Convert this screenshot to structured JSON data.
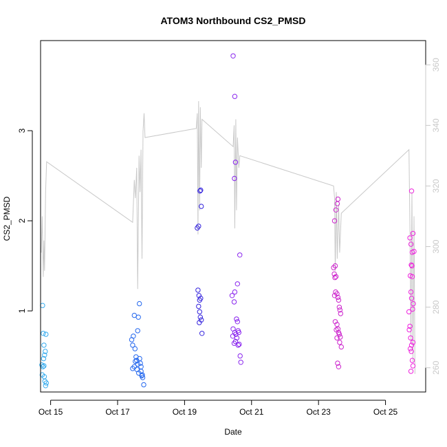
{
  "chart_data": {
    "type": "scatter",
    "title": "ATOM3 Northbound CS2_PMSD",
    "xlabel": "Date",
    "ylabel": "CS2_PMSD",
    "x_unit": "day of October",
    "xlim": [
      14.7,
      26.2
    ],
    "ylim": [
      0.1,
      4.0
    ],
    "xticks": [
      {
        "value": 15,
        "label": "Oct 15"
      },
      {
        "value": 17,
        "label": "Oct 17"
      },
      {
        "value": 19,
        "label": "Oct 19"
      },
      {
        "value": 21,
        "label": "Oct 21"
      },
      {
        "value": 23,
        "label": "Oct 23"
      },
      {
        "value": 25,
        "label": "Oct 25"
      }
    ],
    "yticks": [
      1,
      2,
      3
    ],
    "y2lim": [
      252,
      368
    ],
    "y2ticks": [
      260,
      280,
      300,
      320,
      340,
      360
    ],
    "grid": false,
    "legend": "none",
    "secondary_series": {
      "color": "#c8c8c8",
      "points": [
        [
          14.72,
          298
        ],
        [
          14.75,
          310
        ],
        [
          14.78,
          290
        ],
        [
          14.8,
          302
        ],
        [
          14.82,
          292
        ],
        [
          14.85,
          318
        ],
        [
          14.88,
          328
        ],
        [
          17.45,
          308
        ],
        [
          17.5,
          322
        ],
        [
          17.53,
          316
        ],
        [
          17.57,
          326
        ],
        [
          17.6,
          286
        ],
        [
          17.64,
          330
        ],
        [
          17.67,
          318
        ],
        [
          17.7,
          332
        ],
        [
          17.73,
          296
        ],
        [
          17.76,
          338
        ],
        [
          17.79,
          344
        ],
        [
          17.82,
          336
        ],
        [
          19.35,
          339
        ],
        [
          19.38,
          344
        ],
        [
          19.4,
          304
        ],
        [
          19.42,
          348
        ],
        [
          19.45,
          312
        ],
        [
          19.47,
          346
        ],
        [
          19.5,
          326
        ],
        [
          19.52,
          342
        ],
        [
          20.45,
          333
        ],
        [
          20.48,
          340
        ],
        [
          20.5,
          306
        ],
        [
          20.53,
          342
        ],
        [
          20.55,
          312
        ],
        [
          20.58,
          336
        ],
        [
          20.62,
          326
        ],
        [
          20.65,
          330
        ],
        [
          23.45,
          320
        ],
        [
          23.48,
          316
        ],
        [
          23.5,
          292
        ],
        [
          23.53,
          318
        ],
        [
          23.56,
          296
        ],
        [
          23.6,
          314
        ],
        [
          23.63,
          298
        ],
        [
          23.68,
          311
        ],
        [
          25.7,
          332
        ],
        [
          25.73,
          306
        ],
        [
          25.76,
          268
        ],
        [
          25.79,
          318
        ],
        [
          25.82,
          262
        ],
        [
          25.85,
          310
        ],
        [
          25.88,
          258
        ]
      ]
    },
    "series": [
      {
        "color": "#33aaee",
        "points": [
          [
            14.76,
            1.06
          ],
          [
            14.78,
            0.75
          ],
          [
            14.8,
            0.62
          ],
          [
            14.82,
            0.51
          ],
          [
            14.84,
            0.55
          ],
          [
            14.86,
            0.74
          ],
          [
            14.74,
            0.4
          ],
          [
            14.77,
            0.38
          ],
          [
            14.79,
            0.47
          ],
          [
            14.81,
            0.27
          ],
          [
            14.83,
            0.22
          ],
          [
            14.85,
            0.17
          ],
          [
            14.87,
            0.2
          ],
          [
            14.75,
            0.29
          ],
          [
            14.8,
            0.39
          ]
        ]
      },
      {
        "color": "#2266ee",
        "points": [
          [
            17.42,
            0.68
          ],
          [
            17.45,
            0.62
          ],
          [
            17.47,
            0.72
          ],
          [
            17.5,
            0.95
          ],
          [
            17.52,
            0.58
          ],
          [
            17.55,
            0.49
          ],
          [
            17.57,
            0.45
          ],
          [
            17.6,
            0.78
          ],
          [
            17.62,
            0.93
          ],
          [
            17.65,
            1.08
          ],
          [
            17.68,
            0.42
          ],
          [
            17.7,
            0.38
          ],
          [
            17.72,
            0.28
          ],
          [
            17.75,
            0.26
          ],
          [
            17.78,
            0.18
          ],
          [
            17.5,
            0.38
          ],
          [
            17.53,
            0.44
          ],
          [
            17.58,
            0.35
          ],
          [
            17.63,
            0.31
          ],
          [
            17.66,
            0.47
          ],
          [
            17.7,
            0.33
          ],
          [
            17.74,
            0.29
          ],
          [
            17.45,
            0.36
          ],
          [
            17.6,
            0.41
          ]
        ]
      },
      {
        "color": "#3322dd",
        "points": [
          [
            19.38,
            1.92
          ],
          [
            19.42,
            1.94
          ],
          [
            19.46,
            2.33
          ],
          [
            19.48,
            2.34
          ],
          [
            19.5,
            2.16
          ],
          [
            19.4,
            1.23
          ],
          [
            19.43,
            1.17
          ],
          [
            19.45,
            1.12
          ],
          [
            19.48,
            1.14
          ],
          [
            19.42,
            1.05
          ],
          [
            19.45,
            0.99
          ],
          [
            19.47,
            0.93
          ],
          [
            19.5,
            0.9
          ],
          [
            19.44,
            0.87
          ],
          [
            19.52,
            0.75
          ]
        ]
      },
      {
        "color": "#8822ee",
        "points": [
          [
            20.45,
            3.83
          ],
          [
            20.5,
            3.38
          ],
          [
            20.52,
            2.65
          ],
          [
            20.49,
            2.47
          ],
          [
            20.65,
            1.62
          ],
          [
            20.58,
            1.3
          ],
          [
            20.5,
            1.21
          ],
          [
            20.42,
            1.17
          ],
          [
            20.48,
            1.1
          ],
          [
            20.55,
            0.91
          ],
          [
            20.58,
            0.88
          ],
          [
            20.45,
            0.8
          ],
          [
            20.5,
            0.76
          ],
          [
            20.6,
            0.78
          ],
          [
            20.62,
            0.76
          ],
          [
            20.44,
            0.72
          ],
          [
            20.53,
            0.74
          ],
          [
            20.56,
            0.7
          ],
          [
            20.48,
            0.64
          ],
          [
            20.6,
            0.62
          ],
          [
            20.63,
            0.63
          ],
          [
            20.66,
            0.5
          ],
          [
            20.68,
            0.43
          ],
          [
            20.52,
            0.66
          ]
        ]
      },
      {
        "color": "#cc22cc",
        "points": [
          [
            23.48,
            2.0
          ],
          [
            23.52,
            2.12
          ],
          [
            23.56,
            2.19
          ],
          [
            23.58,
            2.24
          ],
          [
            23.45,
            1.48
          ],
          [
            23.5,
            1.5
          ],
          [
            23.47,
            1.41
          ],
          [
            23.49,
            1.37
          ],
          [
            23.52,
            1.38
          ],
          [
            23.48,
            1.17
          ],
          [
            23.51,
            1.21
          ],
          [
            23.55,
            1.19
          ],
          [
            23.58,
            1.15
          ],
          [
            23.6,
            1.12
          ],
          [
            23.62,
            1.04
          ],
          [
            23.64,
            1.01
          ],
          [
            23.66,
            0.97
          ],
          [
            23.5,
            0.88
          ],
          [
            23.55,
            0.85
          ],
          [
            23.58,
            0.8
          ],
          [
            23.6,
            0.76
          ],
          [
            23.62,
            0.74
          ],
          [
            23.65,
            0.71
          ],
          [
            23.55,
            0.7
          ],
          [
            23.63,
            0.65
          ],
          [
            23.68,
            0.6
          ],
          [
            23.57,
            0.42
          ],
          [
            23.6,
            0.38
          ],
          [
            23.53,
            0.79
          ]
        ]
      },
      {
        "color": "#ee22dd",
        "points": [
          [
            25.78,
            2.33
          ],
          [
            25.82,
            1.86
          ],
          [
            25.73,
            1.81
          ],
          [
            25.76,
            1.74
          ],
          [
            25.8,
            1.65
          ],
          [
            25.85,
            1.66
          ],
          [
            25.77,
            1.51
          ],
          [
            25.79,
            1.5
          ],
          [
            25.74,
            1.39
          ],
          [
            25.8,
            1.38
          ],
          [
            25.76,
            1.21
          ],
          [
            25.78,
            1.14
          ],
          [
            25.83,
            1.08
          ],
          [
            25.81,
            1.02
          ],
          [
            25.7,
            0.99
          ],
          [
            25.73,
            0.83
          ],
          [
            25.71,
            0.79
          ],
          [
            25.75,
            0.7
          ],
          [
            25.78,
            0.62
          ],
          [
            25.82,
            0.65
          ],
          [
            25.74,
            0.58
          ],
          [
            25.77,
            0.55
          ],
          [
            25.8,
            0.45
          ],
          [
            25.82,
            0.39
          ],
          [
            25.76,
            0.33
          ]
        ]
      }
    ]
  }
}
